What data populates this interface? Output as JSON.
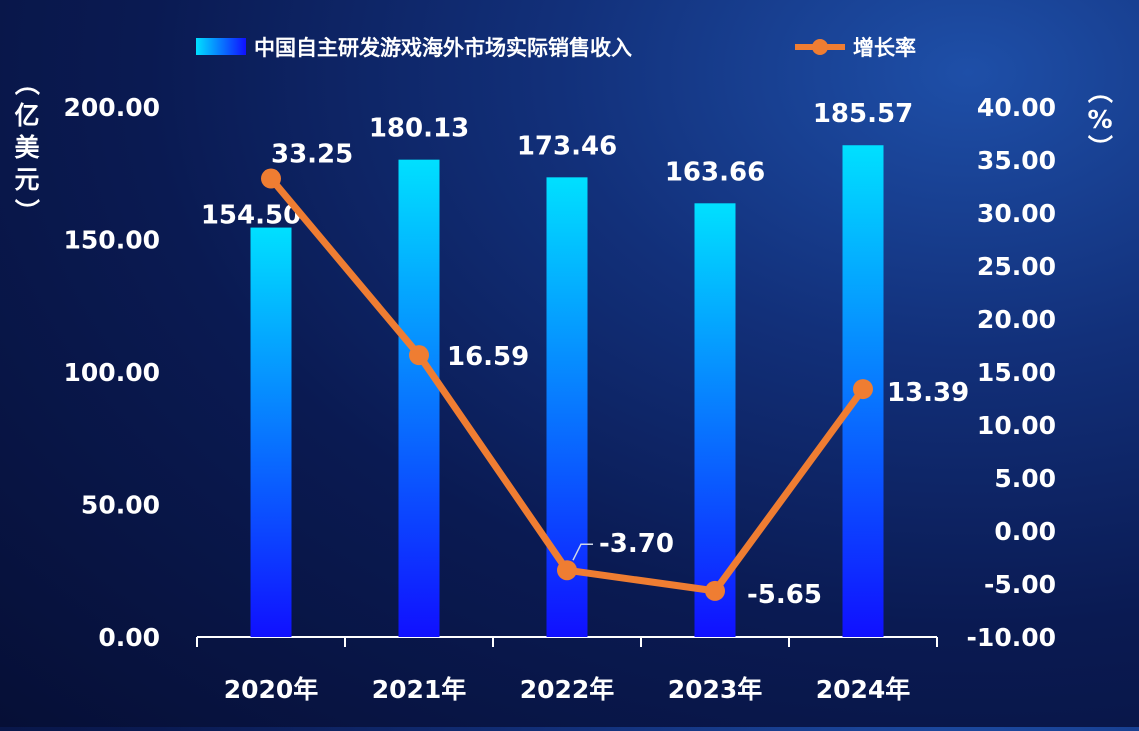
{
  "chart_data": {
    "type": "bar",
    "categories": [
      "2020年",
      "2021年",
      "2022年",
      "2023年",
      "2024年"
    ],
    "series": [
      {
        "name": "中国自主研发游戏海外市场实际销售收入",
        "type": "bar",
        "axis": "left",
        "values": [
          154.5,
          180.13,
          173.46,
          163.66,
          185.57
        ],
        "labels": [
          "154.50",
          "180.13",
          "173.46",
          "163.66",
          "185.57"
        ]
      },
      {
        "name": "增长率",
        "type": "line",
        "axis": "right",
        "values": [
          33.25,
          16.59,
          -3.7,
          -5.65,
          13.39
        ],
        "labels": [
          "33.25",
          "16.59",
          "-3.70",
          "-5.65",
          "13.39"
        ]
      }
    ],
    "y_left": {
      "label": "（亿美元）",
      "label_chars": [
        "（",
        "亿",
        "美",
        "元",
        "）"
      ],
      "ylim": [
        0,
        200
      ],
      "ticks": [
        "0.00",
        "50.00",
        "100.00",
        "150.00",
        "200.00"
      ]
    },
    "y_right": {
      "label": "（%）",
      "label_chars": [
        "（",
        "%",
        "）"
      ],
      "ylim": [
        -10,
        40
      ],
      "ticks": [
        "-10.00",
        "-5.00",
        "0.00",
        "5.00",
        "10.00",
        "15.00",
        "20.00",
        "25.00",
        "30.00",
        "35.00",
        "40.00"
      ]
    },
    "legend_position": "top-center",
    "grid": false,
    "colors": {
      "bar_top": "#00e0ff",
      "bar_bottom": "#1010ff",
      "line": "#ef7d32"
    }
  }
}
